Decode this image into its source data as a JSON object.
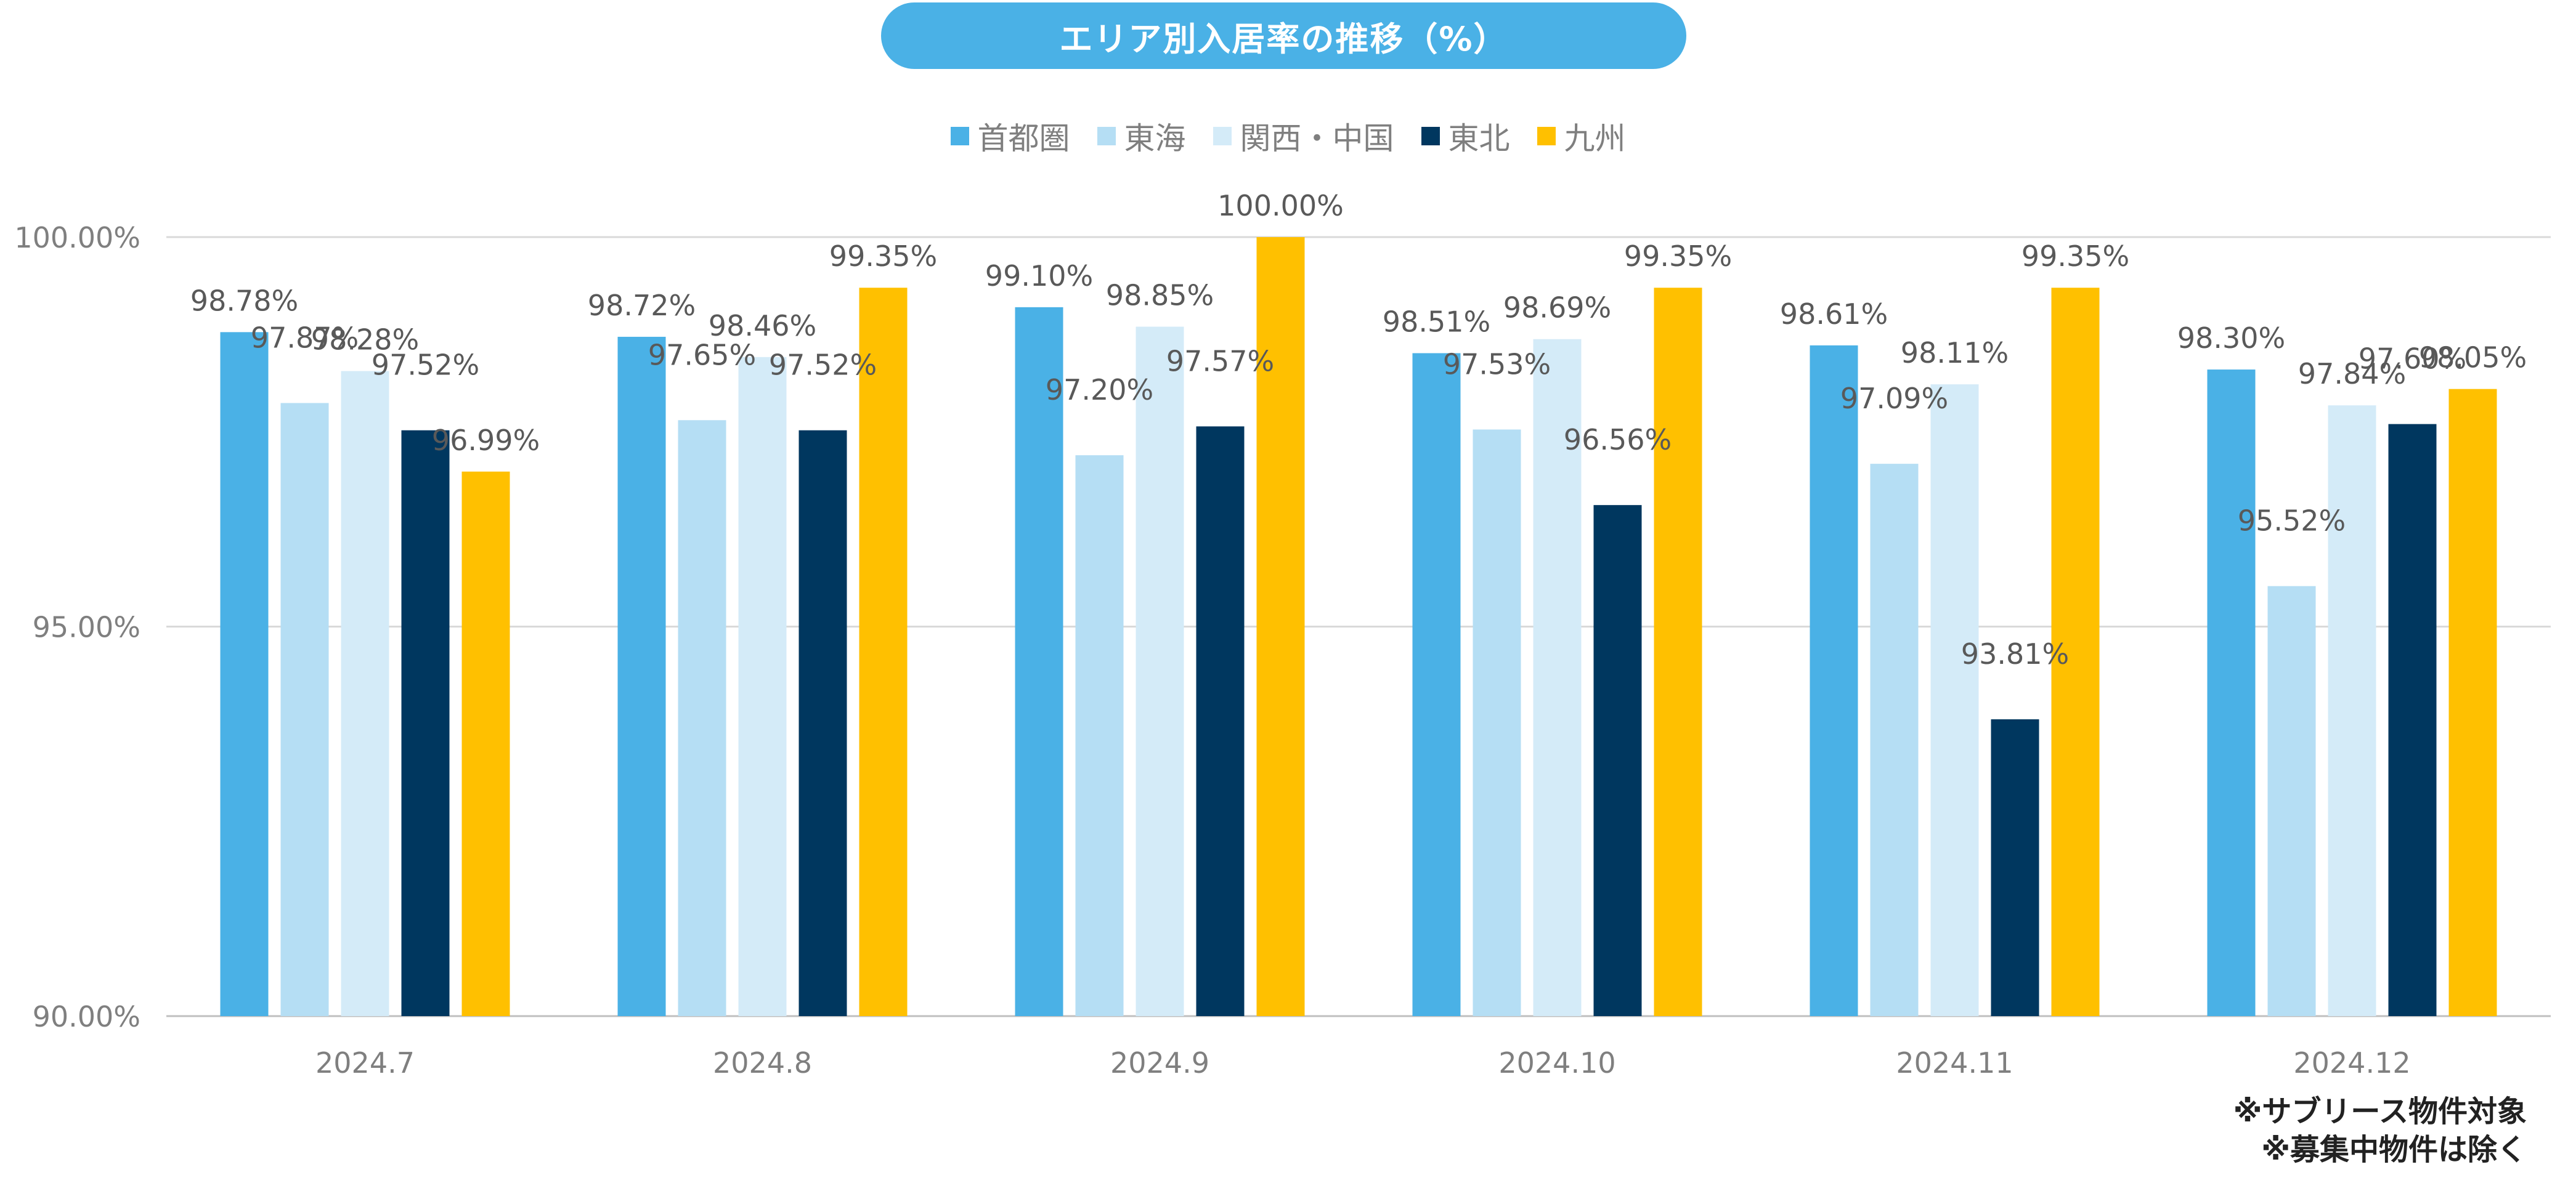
{
  "chart_data": {
    "type": "bar",
    "title": "エリア別入居率の推移（%）",
    "categories": [
      "2024.7",
      "2024.8",
      "2024.9",
      "2024.10",
      "2024.11",
      "2024.12"
    ],
    "series": [
      {
        "name": "首都圏",
        "color": "#4AB1E6",
        "values": [
          98.78,
          98.72,
          99.1,
          98.51,
          98.61,
          98.3
        ]
      },
      {
        "name": "東海",
        "color": "#B5DEF4",
        "values": [
          97.87,
          97.65,
          97.2,
          97.53,
          97.09,
          95.52
        ]
      },
      {
        "name": "関西・中国",
        "color": "#D4EBF8",
        "values": [
          98.28,
          98.46,
          98.85,
          98.69,
          98.11,
          97.84
        ]
      },
      {
        "name": "東北",
        "color": "#00375F",
        "values": [
          97.52,
          97.52,
          97.57,
          96.56,
          93.81,
          97.6
        ]
      },
      {
        "name": "九州",
        "color": "#FFC000",
        "values": [
          96.99,
          99.35,
          100.0,
          99.35,
          99.35,
          98.05
        ]
      }
    ],
    "ylim": [
      90,
      100
    ],
    "yticks": [
      "90.00%",
      "95.00%",
      "100.00%"
    ],
    "data_labels": [
      [
        "98.78%",
        "97.87%",
        "98.28%",
        "97.52%",
        "96.99%"
      ],
      [
        "98.72%",
        "97.65%",
        "98.46%",
        "97.52%",
        "99.35%"
      ],
      [
        "99.10%",
        "97.20%",
        "98.85%",
        "97.57%",
        "100.00%"
      ],
      [
        "98.51%",
        "97.53%",
        "98.69%",
        "96.56%",
        "99.35%"
      ],
      [
        "98.61%",
        "97.09%",
        "98.11%",
        "93.81%",
        "99.35%"
      ],
      [
        "98.30%",
        "95.52%",
        "97.84%",
        "97.60%",
        "98.05%"
      ]
    ],
    "grid": true,
    "legend_position": "top"
  },
  "notes": {
    "line1": "※サブリース物件対象",
    "line2": "※募集中物件は除く"
  }
}
